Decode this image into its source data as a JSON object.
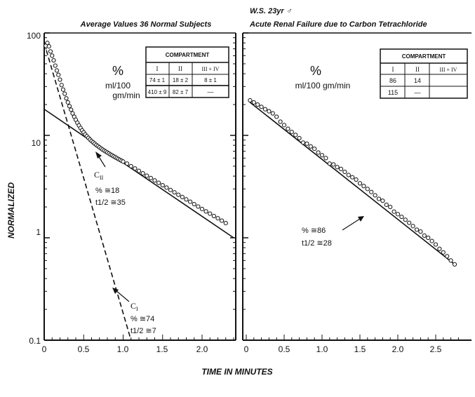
{
  "figure": {
    "ylabel": "NORMALIZED",
    "xlabel": "TIME IN MINUTES"
  },
  "chart_data": [
    {
      "type": "scatter",
      "title": "Average Values 36 Normal Subjects",
      "ylabel": "NORMALIZED",
      "xlabel": "TIME IN MINUTES",
      "yscale": "log",
      "xlim": [
        0,
        2.4
      ],
      "ylim": [
        0.1,
        100
      ],
      "x_ticks": [
        "0",
        "0.5",
        "1.0",
        "1.5",
        "2.0"
      ],
      "y_ticks": [
        "0.1",
        "1",
        "10",
        "100"
      ],
      "series": [
        {
          "points": [
            [
              0.02,
              75
            ],
            [
              0.04,
              80
            ],
            [
              0.06,
              74
            ],
            [
              0.08,
              66
            ],
            [
              0.1,
              60
            ],
            [
              0.12,
              54
            ],
            [
              0.14,
              48
            ],
            [
              0.16,
              43
            ],
            [
              0.18,
              39
            ],
            [
              0.2,
              35
            ],
            [
              0.22,
              31
            ],
            [
              0.24,
              28
            ],
            [
              0.26,
              25.5
            ],
            [
              0.28,
              23
            ],
            [
              0.3,
              21
            ],
            [
              0.32,
              19.3
            ],
            [
              0.34,
              17.8
            ],
            [
              0.36,
              16.4
            ],
            [
              0.38,
              15.2
            ],
            [
              0.4,
              14.2
            ],
            [
              0.42,
              13.3
            ],
            [
              0.44,
              12.5
            ],
            [
              0.46,
              11.8
            ],
            [
              0.48,
              11.2
            ],
            [
              0.5,
              10.7
            ],
            [
              0.52,
              10.2
            ],
            [
              0.54,
              9.8
            ],
            [
              0.56,
              9.45
            ],
            [
              0.58,
              9.1
            ],
            [
              0.6,
              8.8
            ],
            [
              0.62,
              8.55
            ],
            [
              0.64,
              8.3
            ],
            [
              0.66,
              8.05
            ],
            [
              0.68,
              7.85
            ],
            [
              0.7,
              7.65
            ],
            [
              0.72,
              7.45
            ],
            [
              0.74,
              7.27
            ],
            [
              0.76,
              7.1
            ],
            [
              0.78,
              6.95
            ],
            [
              0.8,
              6.8
            ],
            [
              0.82,
              6.65
            ],
            [
              0.84,
              6.5
            ],
            [
              0.86,
              6.38
            ],
            [
              0.88,
              6.25
            ],
            [
              0.9,
              6.12
            ],
            [
              0.92,
              6.0
            ],
            [
              0.94,
              5.88
            ],
            [
              0.96,
              5.76
            ],
            [
              0.98,
              5.65
            ],
            [
              1.0,
              5.55
            ],
            [
              1.05,
              5.3
            ],
            [
              1.1,
              5.0
            ],
            [
              1.15,
              4.75
            ],
            [
              1.2,
              4.5
            ],
            [
              1.25,
              4.26
            ],
            [
              1.3,
              4.04
            ],
            [
              1.35,
              3.83
            ],
            [
              1.4,
              3.63
            ],
            [
              1.45,
              3.44
            ],
            [
              1.5,
              3.26
            ],
            [
              1.55,
              3.09
            ],
            [
              1.6,
              2.93
            ],
            [
              1.65,
              2.78
            ],
            [
              1.7,
              2.63
            ],
            [
              1.75,
              2.5
            ],
            [
              1.8,
              2.37
            ],
            [
              1.85,
              2.25
            ],
            [
              1.9,
              2.13
            ],
            [
              1.95,
              2.02
            ],
            [
              2.0,
              1.91
            ],
            [
              2.05,
              1.81
            ],
            [
              2.1,
              1.72
            ],
            [
              2.15,
              1.63
            ],
            [
              2.2,
              1.55
            ],
            [
              2.25,
              1.47
            ],
            [
              2.3,
              1.39
            ]
          ]
        }
      ],
      "lines": [
        {
          "style": "solid",
          "from": [
            0,
            18
          ],
          "to": [
            2.4,
            1.0
          ]
        },
        {
          "style": "dashed",
          "from": [
            0,
            80
          ],
          "to": [
            1.1,
            0.1
          ]
        }
      ],
      "annotations": {
        "c2_main": "C",
        "c2_sub": "II",
        "c2_pct": "% ≅18",
        "c2_half": "t1/2 ≅35",
        "c1_main": "C",
        "c1_sub": "I",
        "c1_pct": "% ≅74",
        "c1_half": "t1/2 ≅7"
      },
      "legend": {
        "percent": "%",
        "unit": "ml/100",
        "unit2": "gm/min"
      },
      "table": {
        "header": "COMPARTMENT",
        "columns": [
          "I",
          "II",
          "III + IV"
        ],
        "rows": [
          [
            "74 ± 1",
            "18 ± 2",
            "8 ± 1"
          ],
          [
            "410 ± 9",
            "82 ± 7",
            "—"
          ]
        ]
      }
    },
    {
      "type": "scatter",
      "title_line1": "W.S. 23yr ♂",
      "title": "Acute Renal Failure due to Carbon Tetrachloride",
      "xlabel": "TIME IN MINUTES",
      "yscale": "log",
      "xlim": [
        0,
        2.8
      ],
      "ylim": [
        0.1,
        100
      ],
      "x_ticks": [
        "0",
        "0.5",
        "1.0",
        "1.5",
        "2.0",
        "2.5"
      ],
      "series": [
        {
          "points": [
            [
              0.05,
              22
            ],
            [
              0.1,
              21
            ],
            [
              0.15,
              20
            ],
            [
              0.2,
              19
            ],
            [
              0.25,
              18
            ],
            [
              0.3,
              17.2
            ],
            [
              0.35,
              16.4
            ],
            [
              0.4,
              15.2
            ],
            [
              0.45,
              13.6
            ],
            [
              0.5,
              12.6
            ],
            [
              0.55,
              11.6
            ],
            [
              0.6,
              10.8
            ],
            [
              0.65,
              10.1
            ],
            [
              0.7,
              9.4
            ],
            [
              0.75,
              8.5
            ],
            [
              0.8,
              8.3
            ],
            [
              0.85,
              7.8
            ],
            [
              0.9,
              7.4
            ],
            [
              0.95,
              6.8
            ],
            [
              1.0,
              6.4
            ],
            [
              1.05,
              6.0
            ],
            [
              1.1,
              5.3
            ],
            [
              1.15,
              5.2
            ],
            [
              1.2,
              4.9
            ],
            [
              1.25,
              4.7
            ],
            [
              1.3,
              4.4
            ],
            [
              1.35,
              4.1
            ],
            [
              1.4,
              3.9
            ],
            [
              1.45,
              3.7
            ],
            [
              1.5,
              3.4
            ],
            [
              1.55,
              3.2
            ],
            [
              1.6,
              3.0
            ],
            [
              1.65,
              2.8
            ],
            [
              1.7,
              2.6
            ],
            [
              1.75,
              2.4
            ],
            [
              1.8,
              2.3
            ],
            [
              1.85,
              2.1
            ],
            [
              1.9,
              2.0
            ],
            [
              1.95,
              1.8
            ],
            [
              2.0,
              1.7
            ],
            [
              2.05,
              1.6
            ],
            [
              2.1,
              1.5
            ],
            [
              2.15,
              1.4
            ],
            [
              2.2,
              1.3
            ],
            [
              2.25,
              1.2
            ],
            [
              2.3,
              1.15
            ],
            [
              2.35,
              1.05
            ],
            [
              2.4,
              1.0
            ],
            [
              2.45,
              0.93
            ],
            [
              2.5,
              0.86
            ],
            [
              2.55,
              0.78
            ],
            [
              2.6,
              0.72
            ],
            [
              2.65,
              0.66
            ],
            [
              2.7,
              0.6
            ],
            [
              2.75,
              0.55
            ]
          ]
        }
      ],
      "lines": [
        {
          "style": "solid",
          "from": [
            0.05,
            21
          ],
          "to": [
            2.75,
            0.55
          ]
        }
      ],
      "annotations": {
        "pct": "% ≅86",
        "half": "t1/2 ≅28"
      },
      "legend": {
        "percent": "%",
        "unit": "ml/100 gm/min"
      },
      "table": {
        "header": "COMPARTMENT",
        "columns": [
          "I",
          "II",
          "III + IV"
        ],
        "rows": [
          [
            "86",
            "14"
          ],
          [
            "115",
            "—"
          ]
        ]
      }
    }
  ]
}
